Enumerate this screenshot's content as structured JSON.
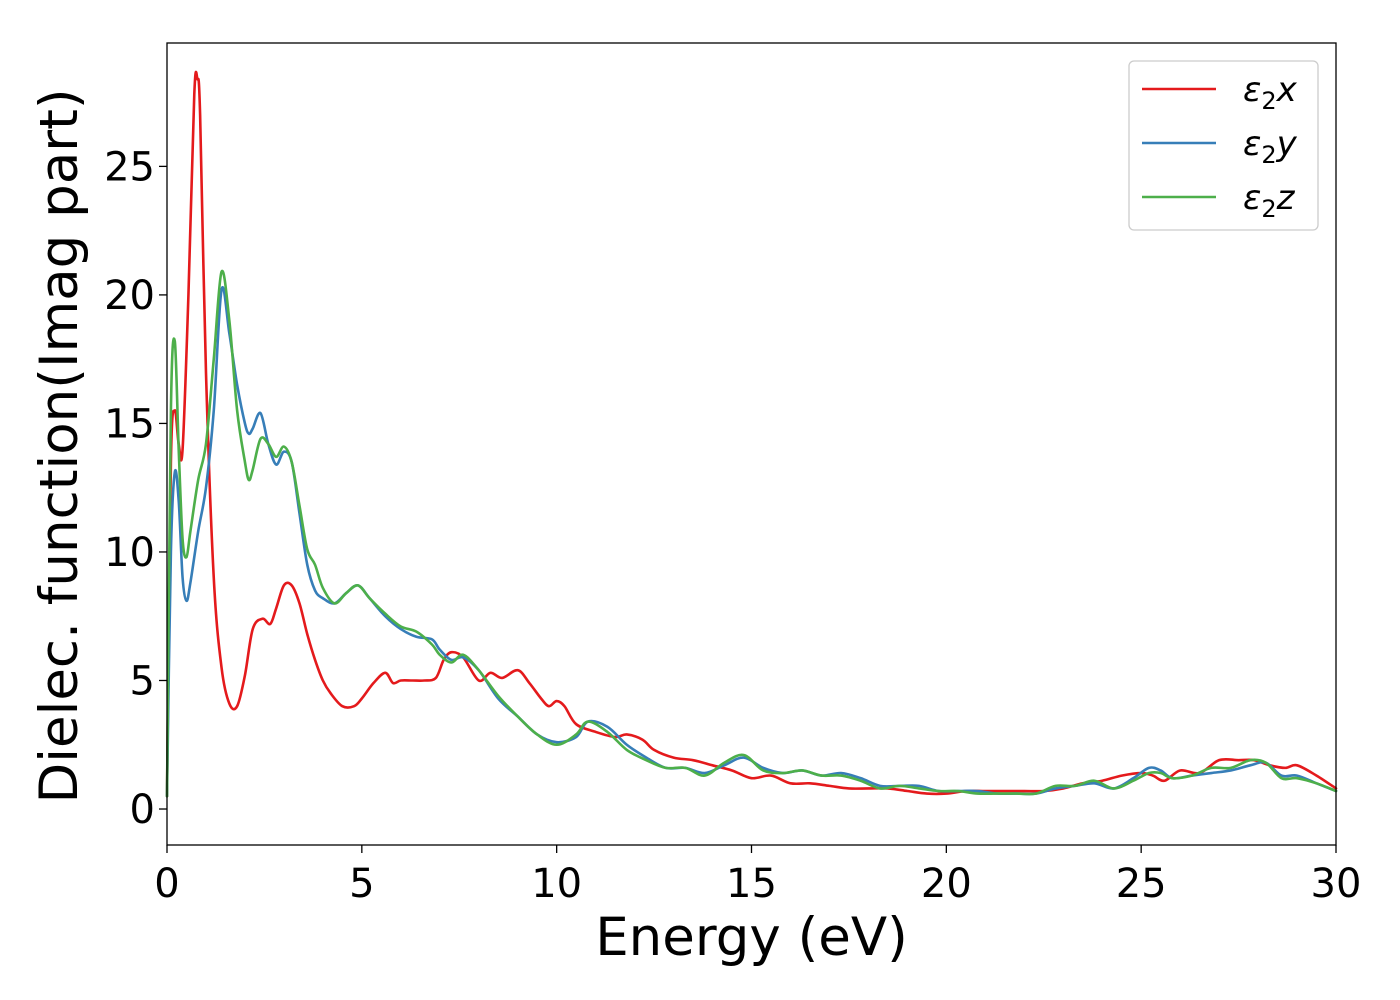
{
  "chart_data": {
    "type": "line",
    "title": "",
    "xlabel": "Energy (eV)",
    "ylabel": "Dielec. function(Imag part)",
    "xlim": [
      0,
      30
    ],
    "ylim": [
      -1.4,
      29.8
    ],
    "xticks": [
      0,
      5,
      10,
      15,
      20,
      25,
      30
    ],
    "yticks": [
      0,
      5,
      10,
      15,
      20,
      25
    ],
    "grid": false,
    "legend_position": "top-right",
    "series": [
      {
        "name": "ε₂x",
        "label_base": "ε",
        "label_sub": "2",
        "label_suffix": "x",
        "color": "#e41a1c",
        "x": [
          0,
          0.1,
          0.2,
          0.3,
          0.4,
          0.55,
          0.7,
          0.78,
          0.85,
          1.0,
          1.2,
          1.4,
          1.6,
          1.8,
          2.0,
          2.2,
          2.45,
          2.65,
          2.8,
          3.0,
          3.2,
          3.4,
          3.6,
          3.8,
          4.0,
          4.2,
          4.5,
          4.8,
          5.0,
          5.3,
          5.6,
          5.8,
          6.0,
          6.3,
          6.6,
          6.9,
          7.1,
          7.3,
          7.6,
          8.0,
          8.3,
          8.6,
          9.0,
          9.3,
          9.6,
          9.8,
          10.0,
          10.2,
          10.5,
          11.0,
          11.5,
          11.8,
          12.2,
          12.5,
          13.0,
          13.5,
          14.0,
          14.5,
          15.0,
          15.5,
          16.0,
          16.5,
          17.0,
          17.5,
          18.0,
          18.5,
          19.0,
          19.5,
          20.0,
          20.5,
          21.0,
          21.5,
          22.0,
          22.5,
          23.0,
          23.5,
          24.0,
          24.5,
          25.0,
          25.3,
          25.6,
          26.0,
          26.5,
          27.0,
          27.5,
          27.9,
          28.3,
          28.7,
          29.0,
          29.5,
          30.0
        ],
        "values": [
          0.5,
          13.5,
          15.5,
          14.2,
          14.0,
          20.0,
          27.8,
          28.4,
          27.0,
          17.0,
          9.0,
          5.5,
          4.1,
          4.0,
          5.2,
          7.0,
          7.4,
          7.2,
          7.8,
          8.7,
          8.7,
          8.0,
          6.8,
          5.8,
          5.0,
          4.5,
          4.0,
          4.0,
          4.3,
          4.9,
          5.3,
          4.9,
          5.0,
          5.0,
          5.0,
          5.1,
          5.8,
          6.1,
          5.9,
          5.0,
          5.3,
          5.1,
          5.4,
          4.9,
          4.3,
          4.0,
          4.2,
          4.0,
          3.3,
          3.0,
          2.8,
          2.9,
          2.7,
          2.3,
          2.0,
          1.9,
          1.7,
          1.5,
          1.2,
          1.3,
          1.0,
          1.0,
          0.9,
          0.8,
          0.8,
          0.8,
          0.7,
          0.6,
          0.6,
          0.7,
          0.7,
          0.7,
          0.7,
          0.7,
          0.8,
          1.0,
          1.1,
          1.3,
          1.4,
          1.3,
          1.1,
          1.5,
          1.4,
          1.9,
          1.9,
          1.9,
          1.7,
          1.6,
          1.7,
          1.3,
          0.8
        ]
      },
      {
        "name": "ε₂y",
        "label_base": "ε",
        "label_sub": "2",
        "label_suffix": "y",
        "color": "#377eb8",
        "x": [
          0,
          0.1,
          0.2,
          0.3,
          0.4,
          0.5,
          0.6,
          0.8,
          1.0,
          1.2,
          1.4,
          1.6,
          1.8,
          2.0,
          2.1,
          2.2,
          2.4,
          2.6,
          2.8,
          3.0,
          3.2,
          3.4,
          3.6,
          3.8,
          4.0,
          4.3,
          4.6,
          4.9,
          5.2,
          5.6,
          6.0,
          6.4,
          6.8,
          7.0,
          7.3,
          7.6,
          8.0,
          8.5,
          9.0,
          9.5,
          10.0,
          10.5,
          10.8,
          11.3,
          11.8,
          12.3,
          12.8,
          13.3,
          13.8,
          14.3,
          14.8,
          15.3,
          15.8,
          16.3,
          16.8,
          17.3,
          17.8,
          18.3,
          18.8,
          19.3,
          19.8,
          20.3,
          20.8,
          21.3,
          21.8,
          22.3,
          22.8,
          23.3,
          23.8,
          24.3,
          24.8,
          25.2,
          25.5,
          25.8,
          26.3,
          26.8,
          27.3,
          27.8,
          28.2,
          28.6,
          29.0,
          29.5,
          30.0
        ],
        "values": [
          0.5,
          10.0,
          13.1,
          12.0,
          9.0,
          8.1,
          8.8,
          10.8,
          12.5,
          15.5,
          20.2,
          18.5,
          16.5,
          15.0,
          14.6,
          14.8,
          15.4,
          14.2,
          13.4,
          13.9,
          13.5,
          11.5,
          9.5,
          8.5,
          8.2,
          8.0,
          8.4,
          8.7,
          8.2,
          7.5,
          7.0,
          6.7,
          6.6,
          6.2,
          5.8,
          5.9,
          5.4,
          4.3,
          3.6,
          2.9,
          2.6,
          2.8,
          3.4,
          3.2,
          2.5,
          2.0,
          1.6,
          1.6,
          1.4,
          1.7,
          2.0,
          1.6,
          1.4,
          1.5,
          1.3,
          1.4,
          1.2,
          0.9,
          0.9,
          0.9,
          0.7,
          0.7,
          0.7,
          0.6,
          0.6,
          0.6,
          0.8,
          0.9,
          1.0,
          0.8,
          1.2,
          1.6,
          1.5,
          1.2,
          1.3,
          1.4,
          1.5,
          1.7,
          1.8,
          1.3,
          1.3,
          1.0,
          0.7
        ]
      },
      {
        "name": "ε₂z",
        "label_base": "ε",
        "label_sub": "2",
        "label_suffix": "z",
        "color": "#4daf4a",
        "x": [
          0,
          0.1,
          0.2,
          0.3,
          0.4,
          0.5,
          0.6,
          0.8,
          1.0,
          1.2,
          1.4,
          1.6,
          1.8,
          2.0,
          2.1,
          2.2,
          2.4,
          2.6,
          2.8,
          3.0,
          3.2,
          3.4,
          3.6,
          3.8,
          4.0,
          4.3,
          4.6,
          4.9,
          5.2,
          5.6,
          6.0,
          6.4,
          6.8,
          7.0,
          7.3,
          7.6,
          8.0,
          8.5,
          9.0,
          9.5,
          10.0,
          10.5,
          10.8,
          11.3,
          11.8,
          12.3,
          12.8,
          13.3,
          13.8,
          14.3,
          14.8,
          15.3,
          15.8,
          16.3,
          16.8,
          17.3,
          17.8,
          18.3,
          18.8,
          19.3,
          19.8,
          20.3,
          20.8,
          21.3,
          21.8,
          22.3,
          22.8,
          23.3,
          23.8,
          24.3,
          24.8,
          25.2,
          25.5,
          25.8,
          26.3,
          26.8,
          27.3,
          27.8,
          28.2,
          28.6,
          29.0,
          29.5,
          30.0
        ],
        "values": [
          0.5,
          15.5,
          18.2,
          14.0,
          10.5,
          9.8,
          10.8,
          12.8,
          14.2,
          17.5,
          20.9,
          19.0,
          15.5,
          13.5,
          12.8,
          13.2,
          14.4,
          14.2,
          13.7,
          14.1,
          13.5,
          11.8,
          10.1,
          9.5,
          8.6,
          8.0,
          8.4,
          8.7,
          8.2,
          7.6,
          7.1,
          6.9,
          6.4,
          6.0,
          5.7,
          6.0,
          5.4,
          4.4,
          3.6,
          2.9,
          2.5,
          2.9,
          3.4,
          3.0,
          2.3,
          1.9,
          1.6,
          1.6,
          1.3,
          1.8,
          2.1,
          1.5,
          1.4,
          1.5,
          1.3,
          1.3,
          1.1,
          0.8,
          0.9,
          0.8,
          0.7,
          0.7,
          0.6,
          0.6,
          0.6,
          0.6,
          0.9,
          0.9,
          1.1,
          0.8,
          1.1,
          1.4,
          1.4,
          1.2,
          1.3,
          1.6,
          1.6,
          1.9,
          1.8,
          1.2,
          1.2,
          1.0,
          0.7
        ]
      }
    ]
  }
}
